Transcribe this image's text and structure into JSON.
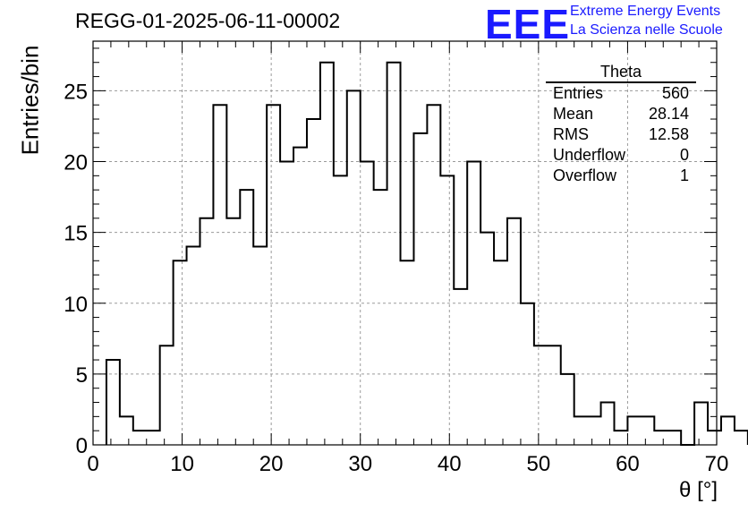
{
  "header": {
    "run_title": "REGG-01-2025-06-11-00002",
    "logo_text": "EEE",
    "logo_line1": "Extreme Energy Events",
    "logo_line2": "La Scienza nelle Scuole"
  },
  "stats_box": {
    "title": "Theta",
    "rows": [
      {
        "label": "Entries",
        "value": "560"
      },
      {
        "label": "Mean",
        "value": "28.14"
      },
      {
        "label": "RMS",
        "value": "12.58"
      },
      {
        "label": "Underflow",
        "value": "0"
      },
      {
        "label": "Overflow",
        "value": "1"
      }
    ]
  },
  "colors": {
    "logo": "#1a1aff",
    "line": "#000000",
    "grid": "#9a9a9a"
  },
  "chart_data": {
    "type": "histogram",
    "title": "REGG-01-2025-06-11-00002",
    "xlabel": "θ [°]",
    "ylabel": "Entries/bin",
    "xlim": [
      0,
      70
    ],
    "ylim": [
      0,
      28.5
    ],
    "x_ticks": [
      0,
      10,
      20,
      30,
      40,
      50,
      60,
      70
    ],
    "y_ticks": [
      0,
      5,
      10,
      15,
      20,
      25
    ],
    "grid": true,
    "bin_edges_start": 1.5,
    "bin_width": 1.5,
    "series": [
      {
        "values": [
          6,
          2,
          1,
          1,
          7,
          13,
          14,
          16,
          24,
          16,
          18,
          14,
          24,
          20,
          21,
          23,
          27,
          19,
          25,
          20,
          18,
          27,
          13,
          22,
          24,
          19,
          11,
          20,
          15,
          13,
          16,
          10,
          7,
          7,
          5,
          2,
          2,
          3,
          1,
          2,
          2,
          1,
          1,
          0,
          3,
          1,
          2,
          1
        ]
      }
    ]
  }
}
